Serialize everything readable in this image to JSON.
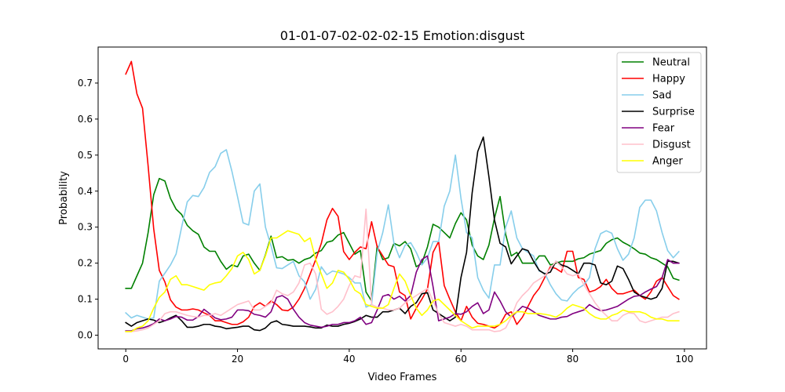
{
  "chart_data": {
    "type": "line",
    "title": "01-01-07-02-02-02-15 Emotion:disgust",
    "xlabel": "Video Frames",
    "ylabel": "Probability",
    "xlim": [
      -4.95,
      103.95
    ],
    "ylim": [
      -0.038,
      0.8
    ],
    "xticks": [
      0,
      20,
      40,
      60,
      80,
      100
    ],
    "yticks": [
      0.0,
      0.1,
      0.2,
      0.3,
      0.4,
      0.5,
      0.6,
      0.7
    ],
    "legend_position": "top-right",
    "series": [
      {
        "name": "Neutral",
        "color": "#008000",
        "values": [
          0.13,
          0.13,
          0.165,
          0.2,
          0.285,
          0.39,
          0.435,
          0.428,
          0.38,
          0.35,
          0.335,
          0.305,
          0.29,
          0.28,
          0.245,
          0.233,
          0.233,
          0.205,
          0.183,
          0.195,
          0.19,
          0.22,
          0.225,
          0.2,
          0.18,
          0.223,
          0.275,
          0.215,
          0.218,
          0.208,
          0.21,
          0.2,
          0.21,
          0.215,
          0.228,
          0.235,
          0.258,
          0.262,
          0.278,
          0.285,
          0.255,
          0.225,
          0.235,
          0.12,
          0.095,
          0.248,
          0.21,
          0.215,
          0.255,
          0.248,
          0.26,
          0.24,
          0.19,
          0.2,
          0.245,
          0.308,
          0.3,
          0.285,
          0.27,
          0.31,
          0.34,
          0.32,
          0.25,
          0.22,
          0.21,
          0.25,
          0.325,
          0.385,
          0.28,
          0.22,
          0.23,
          0.2,
          0.2,
          0.2,
          0.22,
          0.22,
          0.195,
          0.2,
          0.205,
          0.205,
          0.205,
          0.212,
          0.215,
          0.225,
          0.23,
          0.235,
          0.255,
          0.265,
          0.27,
          0.258,
          0.25,
          0.24,
          0.228,
          0.225,
          0.215,
          0.21,
          0.2,
          0.19,
          0.158,
          0.153
        ]
      },
      {
        "name": "Happy",
        "color": "#ff0000",
        "values": [
          0.725,
          0.76,
          0.67,
          0.63,
          0.47,
          0.295,
          0.18,
          0.148,
          0.098,
          0.078,
          0.07,
          0.07,
          0.073,
          0.07,
          0.062,
          0.055,
          0.04,
          0.04,
          0.035,
          0.03,
          0.03,
          0.037,
          0.05,
          0.08,
          0.09,
          0.08,
          0.095,
          0.085,
          0.07,
          0.068,
          0.078,
          0.1,
          0.13,
          0.17,
          0.21,
          0.255,
          0.32,
          0.352,
          0.33,
          0.232,
          0.21,
          0.23,
          0.245,
          0.24,
          0.315,
          0.245,
          0.22,
          0.195,
          0.19,
          0.12,
          0.11,
          0.045,
          0.075,
          0.1,
          0.128,
          0.23,
          0.26,
          0.138,
          0.1,
          0.065,
          0.04,
          0.08,
          0.05,
          0.033,
          0.03,
          0.025,
          0.02,
          0.03,
          0.058,
          0.065,
          0.03,
          0.05,
          0.08,
          0.11,
          0.13,
          0.16,
          0.19,
          0.185,
          0.175,
          0.233,
          0.233,
          0.16,
          0.155,
          0.12,
          0.125,
          0.135,
          0.155,
          0.13,
          0.115,
          0.115,
          0.12,
          0.125,
          0.11,
          0.1,
          0.12,
          0.15,
          0.16,
          0.135,
          0.11,
          0.1
        ]
      },
      {
        "name": "Sad",
        "color": "#87ceeb",
        "values": [
          0.062,
          0.048,
          0.055,
          0.05,
          0.045,
          0.048,
          0.15,
          0.172,
          0.195,
          0.225,
          0.3,
          0.37,
          0.388,
          0.385,
          0.41,
          0.452,
          0.468,
          0.505,
          0.515,
          0.455,
          0.385,
          0.312,
          0.306,
          0.4,
          0.42,
          0.3,
          0.248,
          0.187,
          0.185,
          0.195,
          0.205,
          0.165,
          0.148,
          0.1,
          0.128,
          0.19,
          0.168,
          0.178,
          0.175,
          0.17,
          0.16,
          0.145,
          0.145,
          0.078,
          0.085,
          0.23,
          0.285,
          0.362,
          0.255,
          0.215,
          0.25,
          0.257,
          0.23,
          0.195,
          0.215,
          0.26,
          0.26,
          0.358,
          0.4,
          0.5,
          0.38,
          0.285,
          0.27,
          0.16,
          0.125,
          0.103,
          0.195,
          0.195,
          0.3,
          0.345,
          0.27,
          0.24,
          0.23,
          0.22,
          0.178,
          0.172,
          0.14,
          0.115,
          0.098,
          0.095,
          0.115,
          0.13,
          0.14,
          0.16,
          0.24,
          0.282,
          0.29,
          0.283,
          0.24,
          0.208,
          0.225,
          0.27,
          0.355,
          0.375,
          0.375,
          0.345,
          0.285,
          0.235,
          0.215,
          0.232
        ]
      },
      {
        "name": "Surprise",
        "color": "#000000",
        "values": [
          0.035,
          0.025,
          0.035,
          0.04,
          0.045,
          0.042,
          0.035,
          0.04,
          0.048,
          0.055,
          0.04,
          0.022,
          0.022,
          0.025,
          0.03,
          0.03,
          0.025,
          0.023,
          0.018,
          0.02,
          0.022,
          0.025,
          0.025,
          0.015,
          0.013,
          0.02,
          0.035,
          0.04,
          0.03,
          0.028,
          0.025,
          0.025,
          0.025,
          0.023,
          0.02,
          0.02,
          0.028,
          0.025,
          0.025,
          0.03,
          0.033,
          0.038,
          0.045,
          0.055,
          0.05,
          0.05,
          0.065,
          0.065,
          0.07,
          0.075,
          0.06,
          0.08,
          0.09,
          0.115,
          0.118,
          0.07,
          0.06,
          0.05,
          0.04,
          0.05,
          0.16,
          0.23,
          0.395,
          0.51,
          0.55,
          0.44,
          0.32,
          0.255,
          0.245,
          0.198,
          0.22,
          0.24,
          0.235,
          0.205,
          0.18,
          0.17,
          0.175,
          0.205,
          0.195,
          0.19,
          0.18,
          0.17,
          0.2,
          0.2,
          0.195,
          0.145,
          0.14,
          0.15,
          0.192,
          0.185,
          0.155,
          0.12,
          0.11,
          0.105,
          0.1,
          0.105,
          0.13,
          0.205,
          0.205,
          0.2
        ]
      },
      {
        "name": "Fear",
        "color": "#800080",
        "values": [
          0.012,
          0.012,
          0.018,
          0.02,
          0.025,
          0.032,
          0.045,
          0.04,
          0.045,
          0.052,
          0.05,
          0.042,
          0.042,
          0.052,
          0.072,
          0.06,
          0.048,
          0.043,
          0.045,
          0.05,
          0.07,
          0.07,
          0.068,
          0.058,
          0.055,
          0.05,
          0.065,
          0.105,
          0.11,
          0.1,
          0.072,
          0.05,
          0.035,
          0.028,
          0.025,
          0.022,
          0.025,
          0.03,
          0.03,
          0.035,
          0.035,
          0.04,
          0.05,
          0.03,
          0.035,
          0.07,
          0.108,
          0.113,
          0.1,
          0.108,
          0.095,
          0.11,
          0.175,
          0.21,
          0.22,
          0.135,
          0.04,
          0.045,
          0.05,
          0.06,
          0.058,
          0.065,
          0.08,
          0.09,
          0.06,
          0.07,
          0.12,
          0.095,
          0.065,
          0.05,
          0.065,
          0.08,
          0.075,
          0.065,
          0.055,
          0.05,
          0.045,
          0.045,
          0.05,
          0.052,
          0.06,
          0.065,
          0.07,
          0.085,
          0.075,
          0.068,
          0.07,
          0.075,
          0.08,
          0.09,
          0.1,
          0.108,
          0.11,
          0.12,
          0.128,
          0.135,
          0.16,
          0.21,
          0.2,
          0.2
        ]
      },
      {
        "name": "Disgust",
        "color": "#ffc0cb",
        "values": [
          0.01,
          0.01,
          0.012,
          0.015,
          0.02,
          0.03,
          0.04,
          0.06,
          0.065,
          0.065,
          0.06,
          0.055,
          0.052,
          0.05,
          0.055,
          0.055,
          0.06,
          0.055,
          0.065,
          0.075,
          0.085,
          0.09,
          0.095,
          0.07,
          0.07,
          0.08,
          0.09,
          0.125,
          0.115,
          0.11,
          0.12,
          0.145,
          0.195,
          0.2,
          0.17,
          0.072,
          0.058,
          0.065,
          0.08,
          0.1,
          0.138,
          0.165,
          0.16,
          0.35,
          0.085,
          0.078,
          0.075,
          0.07,
          0.07,
          0.075,
          0.09,
          0.1,
          0.11,
          0.12,
          0.13,
          0.095,
          0.06,
          0.035,
          0.03,
          0.025,
          0.03,
          0.025,
          0.015,
          0.015,
          0.015,
          0.015,
          0.01,
          0.012,
          0.02,
          0.05,
          0.09,
          0.11,
          0.125,
          0.145,
          0.155,
          0.165,
          0.185,
          0.205,
          0.19,
          0.17,
          0.165,
          0.17,
          0.14,
          0.115,
          0.09,
          0.07,
          0.055,
          0.04,
          0.04,
          0.055,
          0.062,
          0.06,
          0.04,
          0.035,
          0.04,
          0.045,
          0.05,
          0.05,
          0.06,
          0.065
        ]
      },
      {
        "name": "Anger",
        "color": "#ffff00",
        "values": [
          0.01,
          0.01,
          0.02,
          0.025,
          0.04,
          0.075,
          0.105,
          0.12,
          0.155,
          0.165,
          0.14,
          0.14,
          0.135,
          0.13,
          0.125,
          0.14,
          0.145,
          0.148,
          0.165,
          0.185,
          0.22,
          0.23,
          0.21,
          0.17,
          0.18,
          0.22,
          0.27,
          0.27,
          0.28,
          0.29,
          0.285,
          0.28,
          0.26,
          0.27,
          0.21,
          0.17,
          0.13,
          0.145,
          0.18,
          0.175,
          0.155,
          0.125,
          0.115,
          0.085,
          0.08,
          0.075,
          0.075,
          0.085,
          0.13,
          0.17,
          0.15,
          0.11,
          0.075,
          0.055,
          0.07,
          0.095,
          0.1,
          0.085,
          0.07,
          0.055,
          0.04,
          0.03,
          0.02,
          0.025,
          0.025,
          0.025,
          0.025,
          0.03,
          0.04,
          0.055,
          0.065,
          0.065,
          0.06,
          0.06,
          0.06,
          0.058,
          0.055,
          0.05,
          0.06,
          0.075,
          0.085,
          0.08,
          0.075,
          0.06,
          0.05,
          0.045,
          0.045,
          0.055,
          0.06,
          0.07,
          0.065,
          0.065,
          0.065,
          0.06,
          0.05,
          0.045,
          0.045,
          0.04,
          0.04,
          0.04
        ]
      }
    ]
  }
}
